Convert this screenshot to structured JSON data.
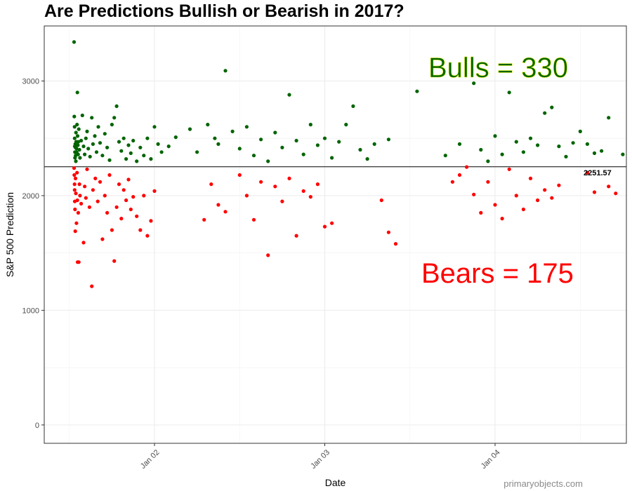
{
  "chart_data": {
    "type": "scatter",
    "title": "Are Predictions Bullish or Bearish in 2017?",
    "xlabel": "Date",
    "ylabel": "S&P 500 Prediction",
    "x_ticks": [
      "Jan 02",
      "Jan 03",
      "Jan 04"
    ],
    "y_ticks": [
      0,
      1000,
      2000,
      3000
    ],
    "ylim": [
      -160,
      3480
    ],
    "grid": true,
    "reference_line": {
      "value": 2251.57,
      "label": "2251.57"
    },
    "annotations": {
      "bulls": "Bulls = 330",
      "bears": "Bears = 175"
    },
    "colors": {
      "bulls": "#006400",
      "bears": "#ff0000",
      "line": "#000000",
      "grid": "#ebebeb"
    },
    "series": [
      {
        "name": "Bulls",
        "color": "#006400",
        "points": [
          [
            "2017-01-01T12:40",
            3340
          ],
          [
            "2017-01-01T12:42",
            2690
          ],
          [
            "2017-01-01T12:44",
            2600
          ],
          [
            "2017-01-01T12:45",
            2500
          ],
          [
            "2017-01-01T12:46",
            2430
          ],
          [
            "2017-01-01T12:47",
            2380
          ],
          [
            "2017-01-01T12:48",
            2330
          ],
          [
            "2017-01-01T12:50",
            2450
          ],
          [
            "2017-01-01T12:52",
            2420
          ],
          [
            "2017-01-01T12:53",
            2350
          ],
          [
            "2017-01-01T12:55",
            2300
          ],
          [
            "2017-01-01T12:56",
            2550
          ],
          [
            "2017-01-01T12:58",
            2470
          ],
          [
            "2017-01-01T13:00",
            2410
          ],
          [
            "2017-01-01T13:02",
            2380
          ],
          [
            "2017-01-01T13:05",
            2620
          ],
          [
            "2017-01-01T13:08",
            2900
          ],
          [
            "2017-01-01T13:10",
            2520
          ],
          [
            "2017-01-01T13:12",
            2440
          ],
          [
            "2017-01-01T13:14",
            2360
          ],
          [
            "2017-01-01T13:16",
            2470
          ],
          [
            "2017-01-01T13:20",
            2580
          ],
          [
            "2017-01-01T13:25",
            2400
          ],
          [
            "2017-01-01T13:30",
            2330
          ],
          [
            "2017-01-01T13:40",
            2480
          ],
          [
            "2017-01-01T13:50",
            2700
          ],
          [
            "2017-01-01T14:00",
            2430
          ],
          [
            "2017-01-01T14:10",
            2360
          ],
          [
            "2017-01-01T14:20",
            2500
          ],
          [
            "2017-01-01T14:30",
            2560
          ],
          [
            "2017-01-01T14:40",
            2410
          ],
          [
            "2017-01-01T14:55",
            2340
          ],
          [
            "2017-01-01T15:10",
            2680
          ],
          [
            "2017-01-01T15:20",
            2450
          ],
          [
            "2017-01-01T15:35",
            2520
          ],
          [
            "2017-01-01T15:50",
            2380
          ],
          [
            "2017-01-01T16:05",
            2600
          ],
          [
            "2017-01-01T16:20",
            2460
          ],
          [
            "2017-01-01T16:40",
            2350
          ],
          [
            "2017-01-01T17:00",
            2540
          ],
          [
            "2017-01-01T17:20",
            2420
          ],
          [
            "2017-01-01T17:40",
            2310
          ],
          [
            "2017-01-01T18:00",
            2620
          ],
          [
            "2017-01-01T18:20",
            2680
          ],
          [
            "2017-01-01T18:40",
            2780
          ],
          [
            "2017-01-01T19:00",
            2470
          ],
          [
            "2017-01-01T19:20",
            2390
          ],
          [
            "2017-01-01T19:40",
            2500
          ],
          [
            "2017-01-01T20:00",
            2320
          ],
          [
            "2017-01-01T20:20",
            2440
          ],
          [
            "2017-01-01T20:40",
            2370
          ],
          [
            "2017-01-01T21:00",
            2480
          ],
          [
            "2017-01-01T21:30",
            2300
          ],
          [
            "2017-01-01T22:00",
            2420
          ],
          [
            "2017-01-01T22:30",
            2350
          ],
          [
            "2017-01-01T23:00",
            2500
          ],
          [
            "2017-01-01T23:30",
            2320
          ],
          [
            "2017-01-02T00:00",
            2600
          ],
          [
            "2017-01-02T00:30",
            2450
          ],
          [
            "2017-01-02T01:00",
            2380
          ],
          [
            "2017-01-02T02:00",
            2430
          ],
          [
            "2017-01-02T03:00",
            2510
          ],
          [
            "2017-01-02T05:00",
            2580
          ],
          [
            "2017-01-02T06:00",
            2380
          ],
          [
            "2017-01-02T07:30",
            2620
          ],
          [
            "2017-01-02T08:30",
            2500
          ],
          [
            "2017-01-02T09:00",
            2450
          ],
          [
            "2017-01-02T10:00",
            3090
          ],
          [
            "2017-01-02T11:00",
            2560
          ],
          [
            "2017-01-02T12:00",
            2410
          ],
          [
            "2017-01-02T13:00",
            2600
          ],
          [
            "2017-01-02T14:00",
            2350
          ],
          [
            "2017-01-02T15:00",
            2490
          ],
          [
            "2017-01-02T16:00",
            2300
          ],
          [
            "2017-01-02T17:00",
            2550
          ],
          [
            "2017-01-02T18:00",
            2420
          ],
          [
            "2017-01-02T19:00",
            2880
          ],
          [
            "2017-01-02T20:00",
            2480
          ],
          [
            "2017-01-02T21:00",
            2360
          ],
          [
            "2017-01-02T22:00",
            2620
          ],
          [
            "2017-01-02T23:00",
            2440
          ],
          [
            "2017-01-03T00:00",
            2500
          ],
          [
            "2017-01-03T01:00",
            2330
          ],
          [
            "2017-01-03T02:00",
            2470
          ],
          [
            "2017-01-03T03:00",
            2620
          ],
          [
            "2017-01-03T04:00",
            2780
          ],
          [
            "2017-01-03T05:00",
            2400
          ],
          [
            "2017-01-03T06:00",
            2320
          ],
          [
            "2017-01-03T07:00",
            2450
          ],
          [
            "2017-01-03T09:00",
            2490
          ],
          [
            "2017-01-03T13:00",
            2910
          ],
          [
            "2017-01-03T17:00",
            2350
          ],
          [
            "2017-01-03T19:00",
            2450
          ],
          [
            "2017-01-03T21:00",
            2980
          ],
          [
            "2017-01-03T22:00",
            2400
          ],
          [
            "2017-01-03T23:00",
            2300
          ],
          [
            "2017-01-04T00:00",
            2520
          ],
          [
            "2017-01-04T01:00",
            2360
          ],
          [
            "2017-01-04T02:00",
            2900
          ],
          [
            "2017-01-04T03:00",
            2470
          ],
          [
            "2017-01-04T04:00",
            2380
          ],
          [
            "2017-01-04T05:00",
            2500
          ],
          [
            "2017-01-04T06:00",
            2440
          ],
          [
            "2017-01-04T07:00",
            2720
          ],
          [
            "2017-01-04T08:00",
            2770
          ],
          [
            "2017-01-04T09:00",
            2430
          ],
          [
            "2017-01-04T10:00",
            2340
          ],
          [
            "2017-01-04T11:00",
            2460
          ],
          [
            "2017-01-04T12:00",
            2560
          ],
          [
            "2017-01-04T13:00",
            2450
          ],
          [
            "2017-01-04T14:00",
            2370
          ],
          [
            "2017-01-04T15:00",
            2390
          ],
          [
            "2017-01-04T16:00",
            2680
          ],
          [
            "2017-01-04T18:00",
            2360
          ],
          [
            "2017-01-04T21:00",
            2350
          ],
          [
            "2017-01-04T22:00",
            2520
          ],
          [
            "2017-01-04T23:00",
            2450
          ],
          [
            "2017-01-05T00:00",
            2700
          ],
          [
            "2017-01-05T00:30",
            2640
          ],
          [
            "2017-01-05T01:00",
            2500
          ],
          [
            "2017-01-05T01:30",
            2400
          ],
          [
            "2017-01-05T02:00",
            2290
          ]
        ]
      },
      {
        "name": "Bears",
        "color": "#ff0000",
        "points": [
          [
            "2017-01-01T12:40",
            2240
          ],
          [
            "2017-01-01T12:42",
            2180
          ],
          [
            "2017-01-01T12:44",
            2100
          ],
          [
            "2017-01-01T12:45",
            2050
          ],
          [
            "2017-01-01T12:46",
            1950
          ],
          [
            "2017-01-01T12:48",
            1880
          ],
          [
            "2017-01-01T12:50",
            1690
          ],
          [
            "2017-01-01T12:52",
            2150
          ],
          [
            "2017-01-01T12:55",
            2020
          ],
          [
            "2017-01-01T13:00",
            1760
          ],
          [
            "2017-01-01T13:05",
            2200
          ],
          [
            "2017-01-01T13:08",
            1960
          ],
          [
            "2017-01-01T13:10",
            1420
          ],
          [
            "2017-01-01T13:15",
            1850
          ],
          [
            "2017-01-01T13:20",
            1420
          ],
          [
            "2017-01-01T13:25",
            2100
          ],
          [
            "2017-01-01T13:30",
            2000
          ],
          [
            "2017-01-01T13:40",
            1930
          ],
          [
            "2017-01-01T14:00",
            1590
          ],
          [
            "2017-01-01T14:10",
            2080
          ],
          [
            "2017-01-01T14:20",
            1980
          ],
          [
            "2017-01-01T14:30",
            2230
          ],
          [
            "2017-01-01T14:50",
            1900
          ],
          [
            "2017-01-01T15:10",
            1210
          ],
          [
            "2017-01-01T15:20",
            2050
          ],
          [
            "2017-01-01T15:40",
            2150
          ],
          [
            "2017-01-01T16:00",
            1950
          ],
          [
            "2017-01-01T16:20",
            2120
          ],
          [
            "2017-01-01T16:40",
            1620
          ],
          [
            "2017-01-01T17:00",
            2000
          ],
          [
            "2017-01-01T17:20",
            1850
          ],
          [
            "2017-01-01T17:40",
            2180
          ],
          [
            "2017-01-01T18:00",
            1700
          ],
          [
            "2017-01-01T18:20",
            1430
          ],
          [
            "2017-01-01T18:40",
            1900
          ],
          [
            "2017-01-01T19:00",
            2100
          ],
          [
            "2017-01-01T19:20",
            1800
          ],
          [
            "2017-01-01T19:40",
            2050
          ],
          [
            "2017-01-01T20:00",
            1960
          ],
          [
            "2017-01-01T20:20",
            2140
          ],
          [
            "2017-01-01T20:40",
            1880
          ],
          [
            "2017-01-01T21:00",
            1990
          ],
          [
            "2017-01-01T21:30",
            1820
          ],
          [
            "2017-01-01T22:00",
            1700
          ],
          [
            "2017-01-01T22:30",
            2000
          ],
          [
            "2017-01-01T23:00",
            1650
          ],
          [
            "2017-01-01T23:30",
            1780
          ],
          [
            "2017-01-02T00:00",
            2040
          ],
          [
            "2017-01-02T07:00",
            1790
          ],
          [
            "2017-01-02T08:00",
            2100
          ],
          [
            "2017-01-02T09:00",
            1920
          ],
          [
            "2017-01-02T10:00",
            1860
          ],
          [
            "2017-01-02T12:00",
            2180
          ],
          [
            "2017-01-02T13:00",
            2000
          ],
          [
            "2017-01-02T14:00",
            1790
          ],
          [
            "2017-01-02T15:00",
            2120
          ],
          [
            "2017-01-02T16:00",
            1480
          ],
          [
            "2017-01-02T17:00",
            2080
          ],
          [
            "2017-01-02T18:00",
            1950
          ],
          [
            "2017-01-02T19:00",
            2150
          ],
          [
            "2017-01-02T20:00",
            1650
          ],
          [
            "2017-01-02T21:00",
            2040
          ],
          [
            "2017-01-02T22:00",
            1990
          ],
          [
            "2017-01-02T23:00",
            2100
          ],
          [
            "2017-01-03T00:00",
            1730
          ],
          [
            "2017-01-03T01:00",
            1760
          ],
          [
            "2017-01-03T08:00",
            1960
          ],
          [
            "2017-01-03T09:00",
            1680
          ],
          [
            "2017-01-03T10:00",
            1580
          ],
          [
            "2017-01-03T18:00",
            2120
          ],
          [
            "2017-01-03T19:00",
            2180
          ],
          [
            "2017-01-03T20:00",
            2250
          ],
          [
            "2017-01-03T21:00",
            2010
          ],
          [
            "2017-01-03T22:00",
            1850
          ],
          [
            "2017-01-03T23:00",
            2120
          ],
          [
            "2017-01-04T00:00",
            1920
          ],
          [
            "2017-01-04T01:00",
            1800
          ],
          [
            "2017-01-04T02:00",
            2230
          ],
          [
            "2017-01-04T03:00",
            2000
          ],
          [
            "2017-01-04T04:00",
            1880
          ],
          [
            "2017-01-04T05:00",
            2150
          ],
          [
            "2017-01-04T06:00",
            1960
          ],
          [
            "2017-01-04T07:00",
            2050
          ],
          [
            "2017-01-04T08:00",
            1980
          ],
          [
            "2017-01-04T09:00",
            2090
          ],
          [
            "2017-01-04T13:00",
            2200
          ],
          [
            "2017-01-04T14:00",
            2030
          ],
          [
            "2017-01-04T16:00",
            2080
          ],
          [
            "2017-01-04T17:00",
            2020
          ],
          [
            "2017-01-04T23:00",
            1990
          ],
          [
            "2017-01-05T00:00",
            2170
          ],
          [
            "2017-01-05T01:00",
            1990
          ],
          [
            "2017-01-05T02:00",
            1990
          ]
        ]
      }
    ]
  },
  "footer": {
    "watermark": "primaryobjects.com"
  }
}
